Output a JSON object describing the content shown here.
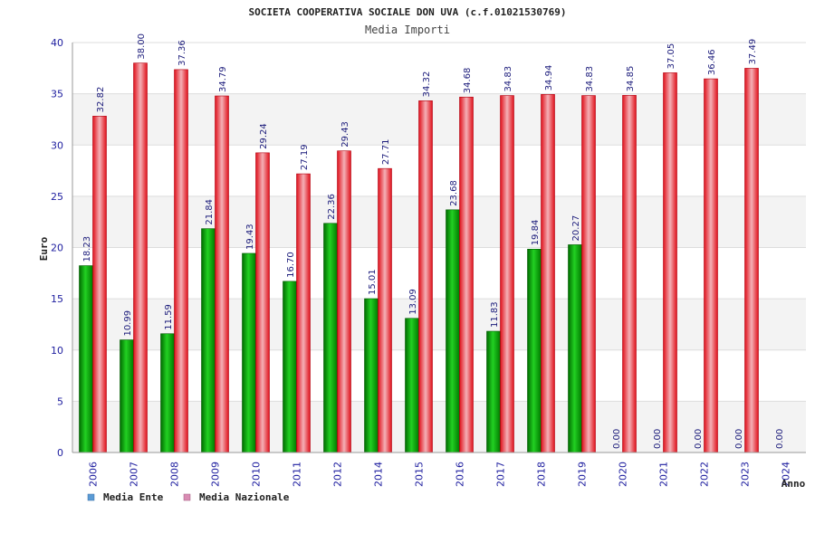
{
  "chart_data": {
    "type": "bar",
    "title": "SOCIETA COOPERATIVA SOCIALE DON UVA (c.f.01021530769)",
    "subtitle": "Media Importi",
    "ylabel": "Euro",
    "xlabel": "Anno",
    "ylim": [
      0,
      40
    ],
    "yticks": [
      "0",
      "5",
      "10",
      "15",
      "20",
      "25",
      "30",
      "35",
      "40"
    ],
    "categories": [
      "2006",
      "2007",
      "2008",
      "2009",
      "2010",
      "2011",
      "2012",
      "2014",
      "2015",
      "2016",
      "2017",
      "2018",
      "2019",
      "2020",
      "2021",
      "2022",
      "2023",
      "2024"
    ],
    "series": [
      {
        "name": "Media Ente",
        "color": "#00b000",
        "values": [
          18.23,
          10.99,
          11.59,
          21.84,
          19.43,
          16.7,
          22.36,
          15.01,
          13.09,
          23.68,
          11.83,
          19.84,
          20.27,
          0.0,
          0.0,
          0.0,
          0.0,
          0.0
        ],
        "labels": [
          "18.23",
          "10.99",
          "11.59",
          "21.84",
          "19.43",
          "16.70",
          "22.36",
          "15.01",
          "13.09",
          "23.68",
          "11.83",
          "19.84",
          "20.27",
          "0.00",
          "0.00",
          "0.00",
          "0.00",
          "0.00"
        ]
      },
      {
        "name": "Media Nazionale",
        "color": "#e8202a",
        "values": [
          32.82,
          38.0,
          37.36,
          34.79,
          29.24,
          27.19,
          29.43,
          27.71,
          34.32,
          34.68,
          34.83,
          34.94,
          34.83,
          34.85,
          37.05,
          36.46,
          37.49,
          null
        ],
        "labels": [
          "32.82",
          "38.00",
          "37.36",
          "34.79",
          "29.24",
          "27.19",
          "29.43",
          "27.71",
          "34.32",
          "34.68",
          "34.83",
          "34.94",
          "34.83",
          "34.85",
          "37.05",
          "36.46",
          "37.49",
          ""
        ]
      }
    ],
    "legend": [
      {
        "label": "Media Ente",
        "color": "#5b9bd5"
      },
      {
        "label": "Media Nazionale",
        "color": "#d98cb3"
      }
    ],
    "legend_position": "bottom-left",
    "grid": true
  }
}
